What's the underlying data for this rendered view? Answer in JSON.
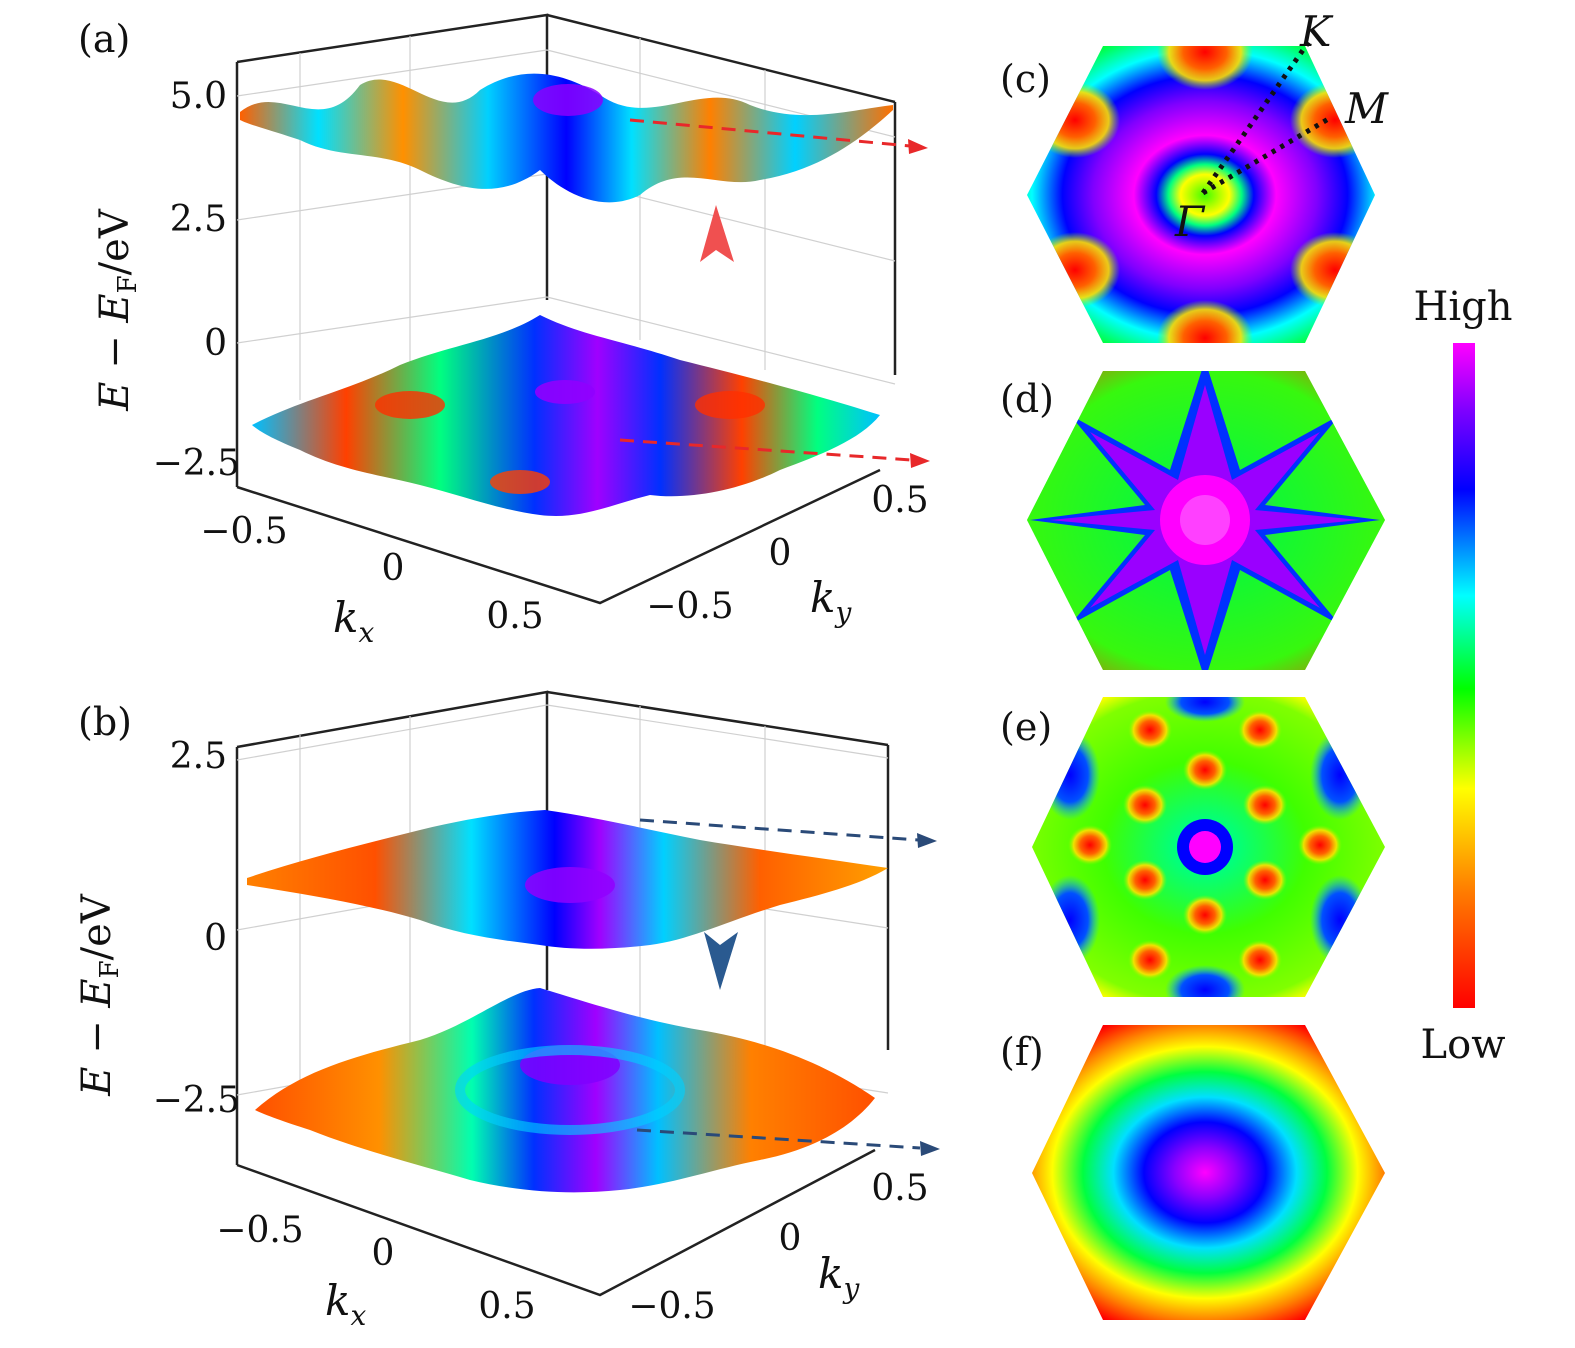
{
  "panel_a": {
    "label": "(a)",
    "ylabel_pre": "E − E",
    "ylabel_sub": "F",
    "ylabel_post": "/eV",
    "z_ticks": [
      "5.0",
      "2.5",
      "0",
      "−2.5"
    ],
    "kx_label": "k",
    "kx_sub": "x",
    "ky_label": "k",
    "ky_sub": "y",
    "kx_ticks": [
      "−0.5",
      "0",
      "0.5"
    ],
    "ky_ticks": [
      "−0.5",
      "0",
      "0.5"
    ]
  },
  "panel_b": {
    "label": "(b)",
    "ylabel_pre": "E − E",
    "ylabel_sub": "F",
    "ylabel_post": "/eV",
    "z_ticks": [
      "2.5",
      "0",
      "−2.5"
    ],
    "kx_label": "k",
    "kx_sub": "x",
    "ky_label": "k",
    "ky_sub": "y",
    "kx_ticks": [
      "−0.5",
      "0",
      "0.5"
    ],
    "ky_ticks": [
      "−0.5",
      "0",
      "0.5"
    ]
  },
  "panel_c": {
    "label": "(c)",
    "point_gamma": "Γ",
    "point_k": "K",
    "point_m": "M"
  },
  "panel_d": {
    "label": "(d)"
  },
  "panel_e": {
    "label": "(e)"
  },
  "panel_f": {
    "label": "(f)"
  },
  "colorbar": {
    "high_label": "High",
    "low_label": "Low"
  },
  "colors": {
    "red_arrow": "#e8282a",
    "navy_arrow": "#2a4a78",
    "axis": "#222222",
    "grid": "#cccccc"
  }
}
